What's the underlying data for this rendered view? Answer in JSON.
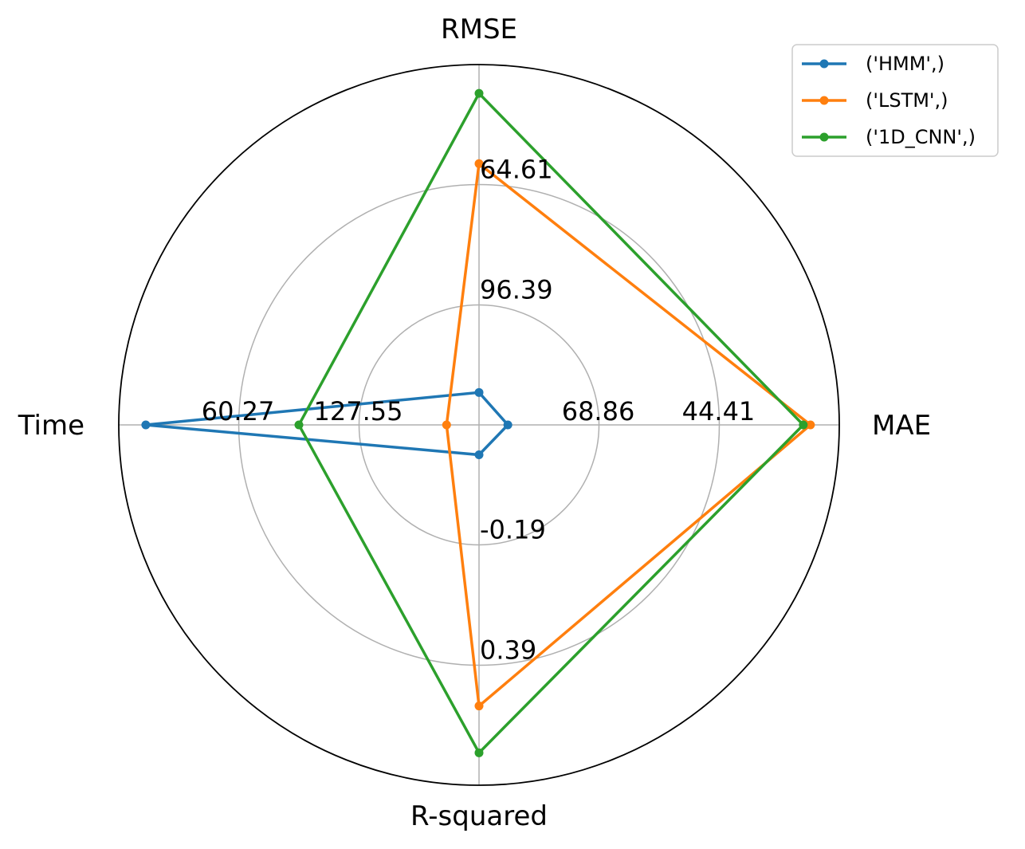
{
  "chart_data": {
    "type": "radar",
    "title": "",
    "axes": [
      {
        "name": "MAE",
        "ticks": [
          "68.86",
          "44.41"
        ]
      },
      {
        "name": "RMSE",
        "ticks": [
          "96.39",
          "64.61"
        ]
      },
      {
        "name": "Time",
        "ticks": [
          "127.55",
          "60.27"
        ]
      },
      {
        "name": "R-squared",
        "ticks": [
          "-0.19",
          "0.39"
        ]
      }
    ],
    "tick_fractions": [
      0.333,
      0.667
    ],
    "series": [
      {
        "name": "('HMM',)",
        "color": "#1f77b4",
        "values": [
          0.08,
          0.09,
          0.925,
          0.083
        ]
      },
      {
        "name": "('LSTM',)",
        "color": "#ff7f0e",
        "values": [
          0.92,
          0.725,
          0.09,
          0.78
        ]
      },
      {
        "name": "('1D_CNN',)",
        "color": "#2ca02c",
        "values": [
          0.9,
          0.92,
          0.5,
          0.91
        ]
      }
    ],
    "grid": true,
    "legend": "top-right"
  }
}
